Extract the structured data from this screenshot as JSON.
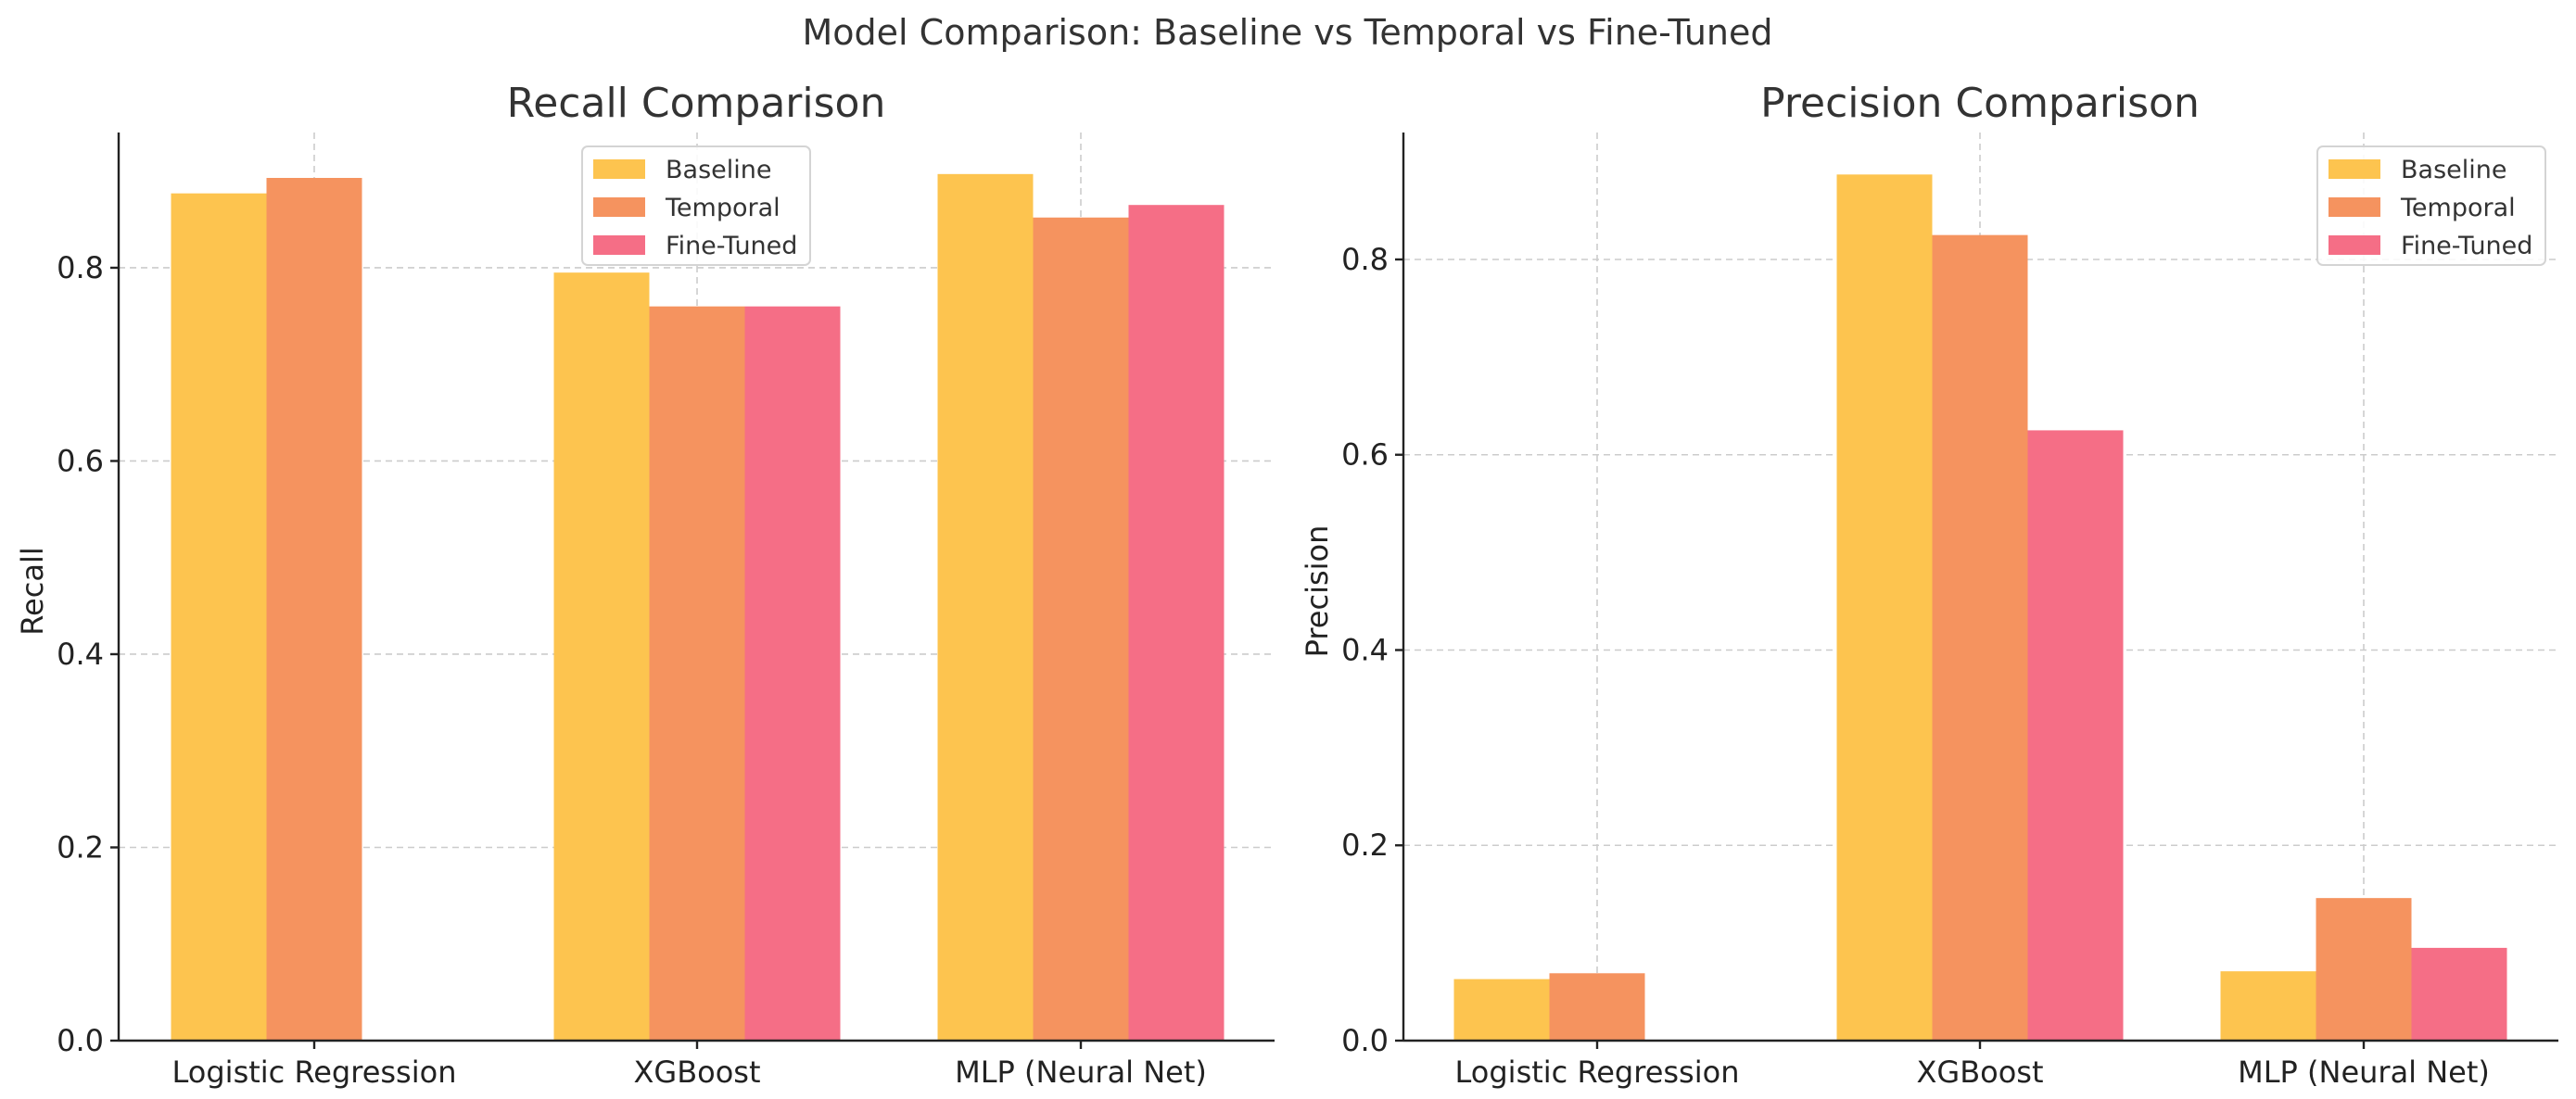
{
  "suptitle": "Model Comparison: Baseline vs Temporal vs Fine-Tuned",
  "colors": {
    "Baseline": "#fdc44f",
    "Temporal": "#f5935f",
    "Fine-Tuned": "#f56e86"
  },
  "chart_data": [
    {
      "type": "bar",
      "title": "Recall Comparison",
      "xlabel": "",
      "ylabel": "Recall",
      "categories": [
        "Logistic Regression",
        "XGBoost",
        "MLP (Neural Net)"
      ],
      "ylim": [
        0,
        0.94
      ],
      "yticks": [
        0.0,
        0.2,
        0.4,
        0.6,
        0.8
      ],
      "ytick_labels": [
        "0.0",
        "0.2",
        "0.4",
        "0.6",
        "0.8"
      ],
      "grid": true,
      "legend_position": "top-center",
      "series": [
        {
          "name": "Baseline",
          "values": [
            0.877,
            0.795,
            0.897
          ]
        },
        {
          "name": "Temporal",
          "values": [
            0.893,
            0.76,
            0.852
          ]
        },
        {
          "name": "Fine-Tuned",
          "values": [
            null,
            0.76,
            0.865
          ]
        }
      ]
    },
    {
      "type": "bar",
      "title": "Precision Comparison",
      "xlabel": "",
      "ylabel": "Precision",
      "categories": [
        "Logistic Regression",
        "XGBoost",
        "MLP (Neural Net)"
      ],
      "ylim": [
        0,
        0.93
      ],
      "yticks": [
        0.0,
        0.2,
        0.4,
        0.6,
        0.8
      ],
      "ytick_labels": [
        "0.0",
        "0.2",
        "0.4",
        "0.6",
        "0.8"
      ],
      "grid": true,
      "legend_position": "top-right",
      "series": [
        {
          "name": "Baseline",
          "values": [
            0.063,
            0.887,
            0.071
          ]
        },
        {
          "name": "Temporal",
          "values": [
            0.069,
            0.825,
            0.146
          ]
        },
        {
          "name": "Fine-Tuned",
          "values": [
            null,
            0.625,
            0.095
          ]
        }
      ]
    }
  ]
}
